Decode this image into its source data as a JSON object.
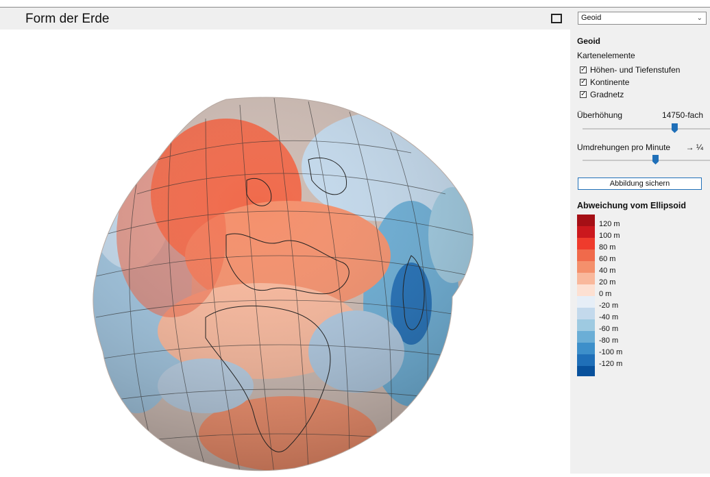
{
  "header": {
    "title": "Form der Erde"
  },
  "icons": {
    "fullscreen": "fullscreen-icon",
    "dropdown": "chevron-down-icon"
  },
  "map_select": {
    "value": "Geoid"
  },
  "panel": {
    "heading": "Geoid",
    "layers_label": "Kartenelemente",
    "layers": [
      {
        "label": "Höhen- und Tiefenstufen",
        "checked": true
      },
      {
        "label": "Kontinente",
        "checked": true
      },
      {
        "label": "Gradnetz",
        "checked": true
      }
    ],
    "exaggeration": {
      "label": "Überhöhung",
      "value": "14750-fach",
      "level": 0.72
    },
    "rotation": {
      "label": "Umdrehungen pro Minute",
      "value": "→ ¼",
      "level": 0.57
    },
    "save_label": "Abbildung sichern"
  },
  "legend": {
    "title": "Abweichung vom Ellipsoid",
    "items": [
      {
        "label": "120 m",
        "color": "#a50f15"
      },
      {
        "label": "100 m",
        "color": "#cb181d"
      },
      {
        "label": "80 m",
        "color": "#ef3b2c"
      },
      {
        "label": "60 m",
        "color": "#f06a4b"
      },
      {
        "label": "40 m",
        "color": "#f4906c"
      },
      {
        "label": "20 m",
        "color": "#f9b89c"
      },
      {
        "label": "0 m",
        "color": "#fde0d2"
      },
      {
        "label": "-20 m",
        "color": "#e6eef7"
      },
      {
        "label": "-40 m",
        "color": "#c3d9ec"
      },
      {
        "label": "-60 m",
        "color": "#9ecae1"
      },
      {
        "label": "-80 m",
        "color": "#6baed6"
      },
      {
        "label": "-100 m",
        "color": "#3d8fca"
      },
      {
        "label": "-120 m",
        "color": "#1f6fb8"
      }
    ],
    "bottom_color": "#08519c"
  },
  "colors": {
    "accent": "#1f6fb8"
  }
}
